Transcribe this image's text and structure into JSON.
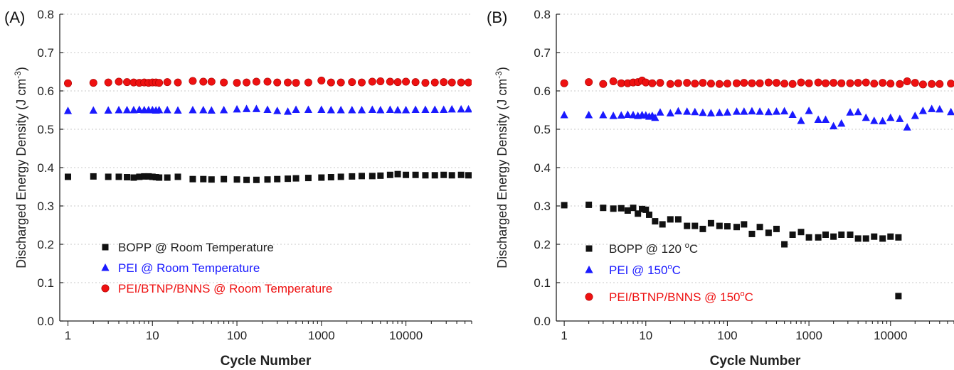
{
  "chart_data": [
    {
      "panel_label": "(A)",
      "type": "scatter",
      "x_scale": "log",
      "xlabel": "Cycle Number",
      "ylabel": "Discharged Energy Density (J cm-3)",
      "ylabel_main": "Discharged Energy Density (J cm",
      "ylabel_sup": "-3",
      "ylabel_close": ")",
      "xlim": [
        0.8,
        60000
      ],
      "ylim": [
        0.0,
        0.8
      ],
      "x_ticks": [
        1,
        10,
        100,
        1000,
        10000
      ],
      "x_tick_labels": [
        "1",
        "10",
        "100",
        "1000",
        "10000"
      ],
      "y_ticks": [
        0.0,
        0.1,
        0.2,
        0.3,
        0.4,
        0.5,
        0.6,
        0.7,
        0.8
      ],
      "y_tick_labels": [
        "0.0",
        "0.1",
        "0.2",
        "0.3",
        "0.4",
        "0.5",
        "0.6",
        "0.7",
        "0.8"
      ],
      "grid": "horizontal dotted",
      "legend_position": "bottom-left",
      "series": [
        {
          "name": "BOPP @ Room Temperature",
          "legend_parts": [
            "BOPP @ Room Temperature"
          ],
          "marker": "square",
          "color": "#111111",
          "x": [
            1,
            2,
            3,
            4,
            5,
            6,
            7,
            8,
            9,
            10,
            11,
            12,
            15,
            20,
            30,
            40,
            50,
            70,
            100,
            130,
            170,
            230,
            300,
            400,
            500,
            700,
            1000,
            1300,
            1700,
            2300,
            3000,
            4000,
            5000,
            6500,
            8000,
            10000,
            13000,
            17000,
            22000,
            28000,
            35000,
            45000,
            55000
          ],
          "y": [
            0.376,
            0.377,
            0.376,
            0.376,
            0.375,
            0.374,
            0.376,
            0.377,
            0.377,
            0.376,
            0.375,
            0.374,
            0.374,
            0.376,
            0.37,
            0.37,
            0.369,
            0.37,
            0.369,
            0.368,
            0.368,
            0.369,
            0.37,
            0.371,
            0.372,
            0.373,
            0.374,
            0.375,
            0.376,
            0.377,
            0.378,
            0.378,
            0.379,
            0.381,
            0.383,
            0.381,
            0.381,
            0.38,
            0.38,
            0.381,
            0.38,
            0.381,
            0.38
          ]
        },
        {
          "name": "PEI @ Room Temperature",
          "legend_parts": [
            "PEI @ Room Temperature"
          ],
          "marker": "triangle",
          "color": "#1a1aff",
          "x": [
            1,
            2,
            3,
            4,
            5,
            6,
            7,
            8,
            9,
            10,
            11,
            12,
            15,
            20,
            30,
            40,
            50,
            70,
            100,
            130,
            170,
            230,
            300,
            400,
            500,
            700,
            1000,
            1300,
            1700,
            2300,
            3000,
            4000,
            5000,
            6500,
            8000,
            10000,
            13000,
            17000,
            22000,
            28000,
            35000,
            45000,
            55000
          ],
          "y": [
            0.548,
            0.549,
            0.549,
            0.55,
            0.55,
            0.55,
            0.551,
            0.55,
            0.55,
            0.55,
            0.549,
            0.55,
            0.55,
            0.549,
            0.55,
            0.55,
            0.549,
            0.55,
            0.552,
            0.553,
            0.553,
            0.551,
            0.548,
            0.546,
            0.551,
            0.551,
            0.551,
            0.55,
            0.55,
            0.55,
            0.55,
            0.551,
            0.55,
            0.551,
            0.55,
            0.55,
            0.551,
            0.551,
            0.551,
            0.551,
            0.552,
            0.552,
            0.552
          ]
        },
        {
          "name": "PEI/BTNP/BNNS @ Room Temperature",
          "legend_parts": [
            "PEI/BTNP/BNNS @ Room Temperature"
          ],
          "marker": "circle",
          "color": "#ee1111",
          "x": [
            1,
            2,
            3,
            4,
            5,
            6,
            7,
            8,
            9,
            10,
            11,
            12,
            15,
            20,
            30,
            40,
            50,
            70,
            100,
            130,
            170,
            230,
            300,
            400,
            500,
            700,
            1000,
            1300,
            1700,
            2300,
            3000,
            4000,
            5000,
            6500,
            8000,
            10000,
            13000,
            17000,
            22000,
            28000,
            35000,
            45000,
            55000
          ],
          "y": [
            0.62,
            0.621,
            0.622,
            0.624,
            0.623,
            0.622,
            0.621,
            0.622,
            0.621,
            0.622,
            0.622,
            0.621,
            0.623,
            0.622,
            0.626,
            0.624,
            0.624,
            0.622,
            0.621,
            0.622,
            0.624,
            0.624,
            0.622,
            0.622,
            0.621,
            0.622,
            0.627,
            0.622,
            0.622,
            0.623,
            0.622,
            0.624,
            0.625,
            0.624,
            0.623,
            0.624,
            0.623,
            0.621,
            0.622,
            0.623,
            0.622,
            0.622,
            0.622
          ]
        }
      ]
    },
    {
      "panel_label": "(B)",
      "type": "scatter",
      "x_scale": "log",
      "xlabel": "Cycle Number",
      "ylabel": "Discharged Energy Density (J cm-3)",
      "ylabel_main": "Discharged Energy Density (J cm",
      "ylabel_sup": "-3",
      "ylabel_close": ")",
      "xlim": [
        0.8,
        60000
      ],
      "ylim": [
        0.0,
        0.8
      ],
      "x_ticks": [
        1,
        10,
        100,
        1000,
        10000
      ],
      "x_tick_labels": [
        "1",
        "10",
        "100",
        "1000",
        "10000"
      ],
      "y_ticks": [
        0.0,
        0.1,
        0.2,
        0.3,
        0.4,
        0.5,
        0.6,
        0.7,
        0.8
      ],
      "y_tick_labels": [
        "0.0",
        "0.1",
        "0.2",
        "0.3",
        "0.4",
        "0.5",
        "0.6",
        "0.7",
        "0.8"
      ],
      "grid": "horizontal dotted",
      "legend_position": "bottom-left",
      "series": [
        {
          "name": "BOPP @ 120 °C",
          "legend_parts": [
            "BOPP @ 120 ",
            "o",
            "C"
          ],
          "marker": "square",
          "color": "#111111",
          "x": [
            1,
            2,
            3,
            4,
            5,
            6,
            7,
            8,
            9,
            10,
            11,
            13,
            16,
            20,
            25,
            32,
            40,
            50,
            63,
            80,
            100,
            130,
            160,
            200,
            250,
            320,
            400,
            500,
            630,
            800,
            1000,
            1300,
            1600,
            2000,
            2500,
            3200,
            4000,
            5000,
            6300,
            8000,
            10000,
            12500,
            12500
          ],
          "y": [
            0.302,
            0.303,
            0.295,
            0.293,
            0.294,
            0.288,
            0.295,
            0.28,
            0.292,
            0.29,
            0.277,
            0.26,
            0.252,
            0.265,
            0.265,
            0.248,
            0.248,
            0.24,
            0.255,
            0.248,
            0.247,
            0.245,
            0.252,
            0.227,
            0.245,
            0.23,
            0.24,
            0.2,
            0.225,
            0.232,
            0.218,
            0.218,
            0.225,
            0.22,
            0.225,
            0.225,
            0.215,
            0.215,
            0.22,
            0.215,
            0.22,
            0.218,
            0.065
          ]
        },
        {
          "name": "PEI @ 150 °C",
          "legend_parts": [
            "PEI @ 150",
            "o",
            "C"
          ],
          "marker": "triangle",
          "color": "#1a1aff",
          "x": [
            1,
            2,
            3,
            4,
            5,
            6,
            7,
            8,
            9,
            10,
            11,
            12,
            13,
            15,
            20,
            25,
            32,
            40,
            50,
            63,
            80,
            100,
            130,
            160,
            200,
            250,
            320,
            400,
            500,
            630,
            800,
            1000,
            1300,
            1600,
            2000,
            2500,
            3200,
            4000,
            5000,
            6300,
            8000,
            10000,
            13000,
            16000,
            20000,
            25000,
            32000,
            40000,
            55000
          ],
          "y": [
            0.537,
            0.537,
            0.537,
            0.535,
            0.536,
            0.538,
            0.537,
            0.535,
            0.537,
            0.536,
            0.533,
            0.535,
            0.53,
            0.544,
            0.542,
            0.547,
            0.546,
            0.545,
            0.543,
            0.542,
            0.543,
            0.544,
            0.546,
            0.546,
            0.547,
            0.546,
            0.545,
            0.546,
            0.547,
            0.538,
            0.522,
            0.548,
            0.525,
            0.525,
            0.508,
            0.515,
            0.544,
            0.545,
            0.53,
            0.522,
            0.521,
            0.53,
            0.527,
            0.505,
            0.535,
            0.548,
            0.553,
            0.552,
            0.545
          ]
        },
        {
          "name": "PEI/BTNP/BNNS @ 150 °C",
          "legend_parts": [
            "PEI/BTNP/BNNS @ 150",
            "o",
            "C"
          ],
          "marker": "circle",
          "color": "#ee1111",
          "x": [
            1,
            2,
            3,
            4,
            5,
            6,
            7,
            8,
            9,
            10,
            12,
            15,
            20,
            25,
            32,
            40,
            50,
            63,
            80,
            100,
            130,
            160,
            200,
            250,
            320,
            400,
            500,
            630,
            800,
            1000,
            1300,
            1600,
            2000,
            2500,
            3200,
            4000,
            5000,
            6300,
            8000,
            10000,
            13000,
            16000,
            20000,
            25000,
            32000,
            40000,
            55000
          ],
          "y": [
            0.62,
            0.623,
            0.618,
            0.625,
            0.62,
            0.62,
            0.622,
            0.623,
            0.627,
            0.622,
            0.62,
            0.621,
            0.618,
            0.62,
            0.621,
            0.619,
            0.621,
            0.619,
            0.618,
            0.619,
            0.62,
            0.621,
            0.62,
            0.62,
            0.622,
            0.621,
            0.619,
            0.618,
            0.622,
            0.62,
            0.622,
            0.62,
            0.621,
            0.62,
            0.62,
            0.621,
            0.622,
            0.619,
            0.621,
            0.619,
            0.618,
            0.625,
            0.621,
            0.617,
            0.618,
            0.618,
            0.619
          ]
        }
      ]
    }
  ]
}
